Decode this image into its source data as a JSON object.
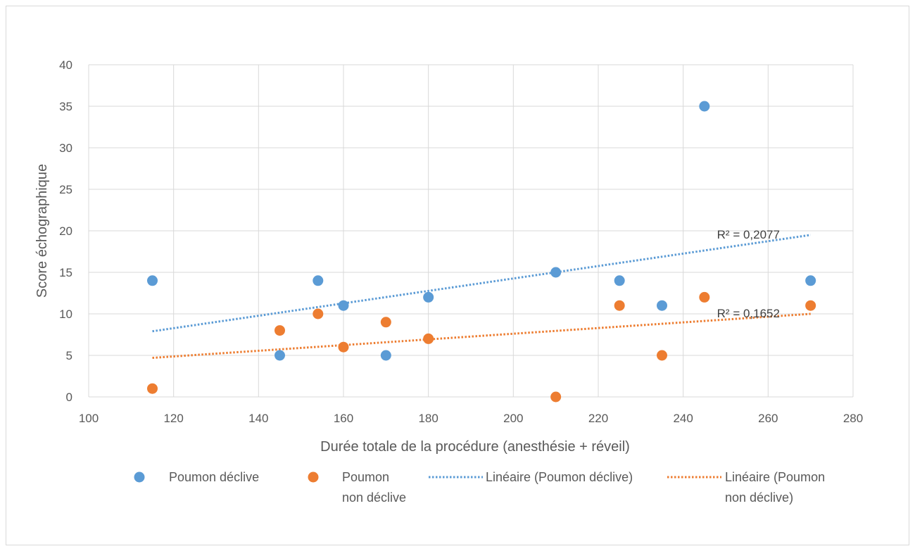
{
  "chart_data": {
    "type": "scatter",
    "title": "",
    "xlabel": "Durée totale de la procédure (anesthésie + réveil)",
    "ylabel": "Score échographique",
    "xlim": [
      100,
      280
    ],
    "ylim": [
      0,
      40
    ],
    "xticks": [
      100,
      120,
      140,
      160,
      180,
      200,
      220,
      240,
      260,
      280
    ],
    "yticks": [
      0,
      5,
      10,
      15,
      20,
      25,
      30,
      35,
      40
    ],
    "grid": true,
    "legend_position": "bottom",
    "series": [
      {
        "name": "Poumon déclive",
        "color": "#5b9bd5",
        "points": [
          [
            115,
            14
          ],
          [
            145,
            5
          ],
          [
            154,
            14
          ],
          [
            160,
            11
          ],
          [
            170,
            5
          ],
          [
            180,
            12
          ],
          [
            210,
            15
          ],
          [
            225,
            14
          ],
          [
            235,
            11
          ],
          [
            245,
            35
          ],
          [
            270,
            14
          ]
        ]
      },
      {
        "name": "Poumon non déclive",
        "color": "#ed7d31",
        "points": [
          [
            115,
            1
          ],
          [
            145,
            8
          ],
          [
            154,
            10
          ],
          [
            160,
            6
          ],
          [
            170,
            9
          ],
          [
            180,
            7
          ],
          [
            210,
            0
          ],
          [
            225,
            11
          ],
          [
            235,
            5
          ],
          [
            245,
            12
          ],
          [
            270,
            11
          ]
        ]
      }
    ],
    "trendlines": [
      {
        "name": "Linéaire (Poumon déclive)",
        "color": "#5b9bd5",
        "x": [
          115,
          270
        ],
        "y": [
          7.9,
          19.5
        ],
        "r2_label": "R² = 0,2077"
      },
      {
        "name": "Linéaire (Poumon non déclive)",
        "color": "#ed7d31",
        "x": [
          115,
          270
        ],
        "y": [
          4.7,
          10.0
        ],
        "r2_label": "R² = 0,1652"
      }
    ],
    "legend": {
      "s1_label": "Poumon déclive",
      "s2_label_l1": "Poumon",
      "s2_label_l2": "non déclive",
      "t1_label": "Linéaire (Poumon déclive)",
      "t2_label_l1": "Linéaire (Poumon",
      "t2_label_l2": "non déclive)"
    }
  }
}
